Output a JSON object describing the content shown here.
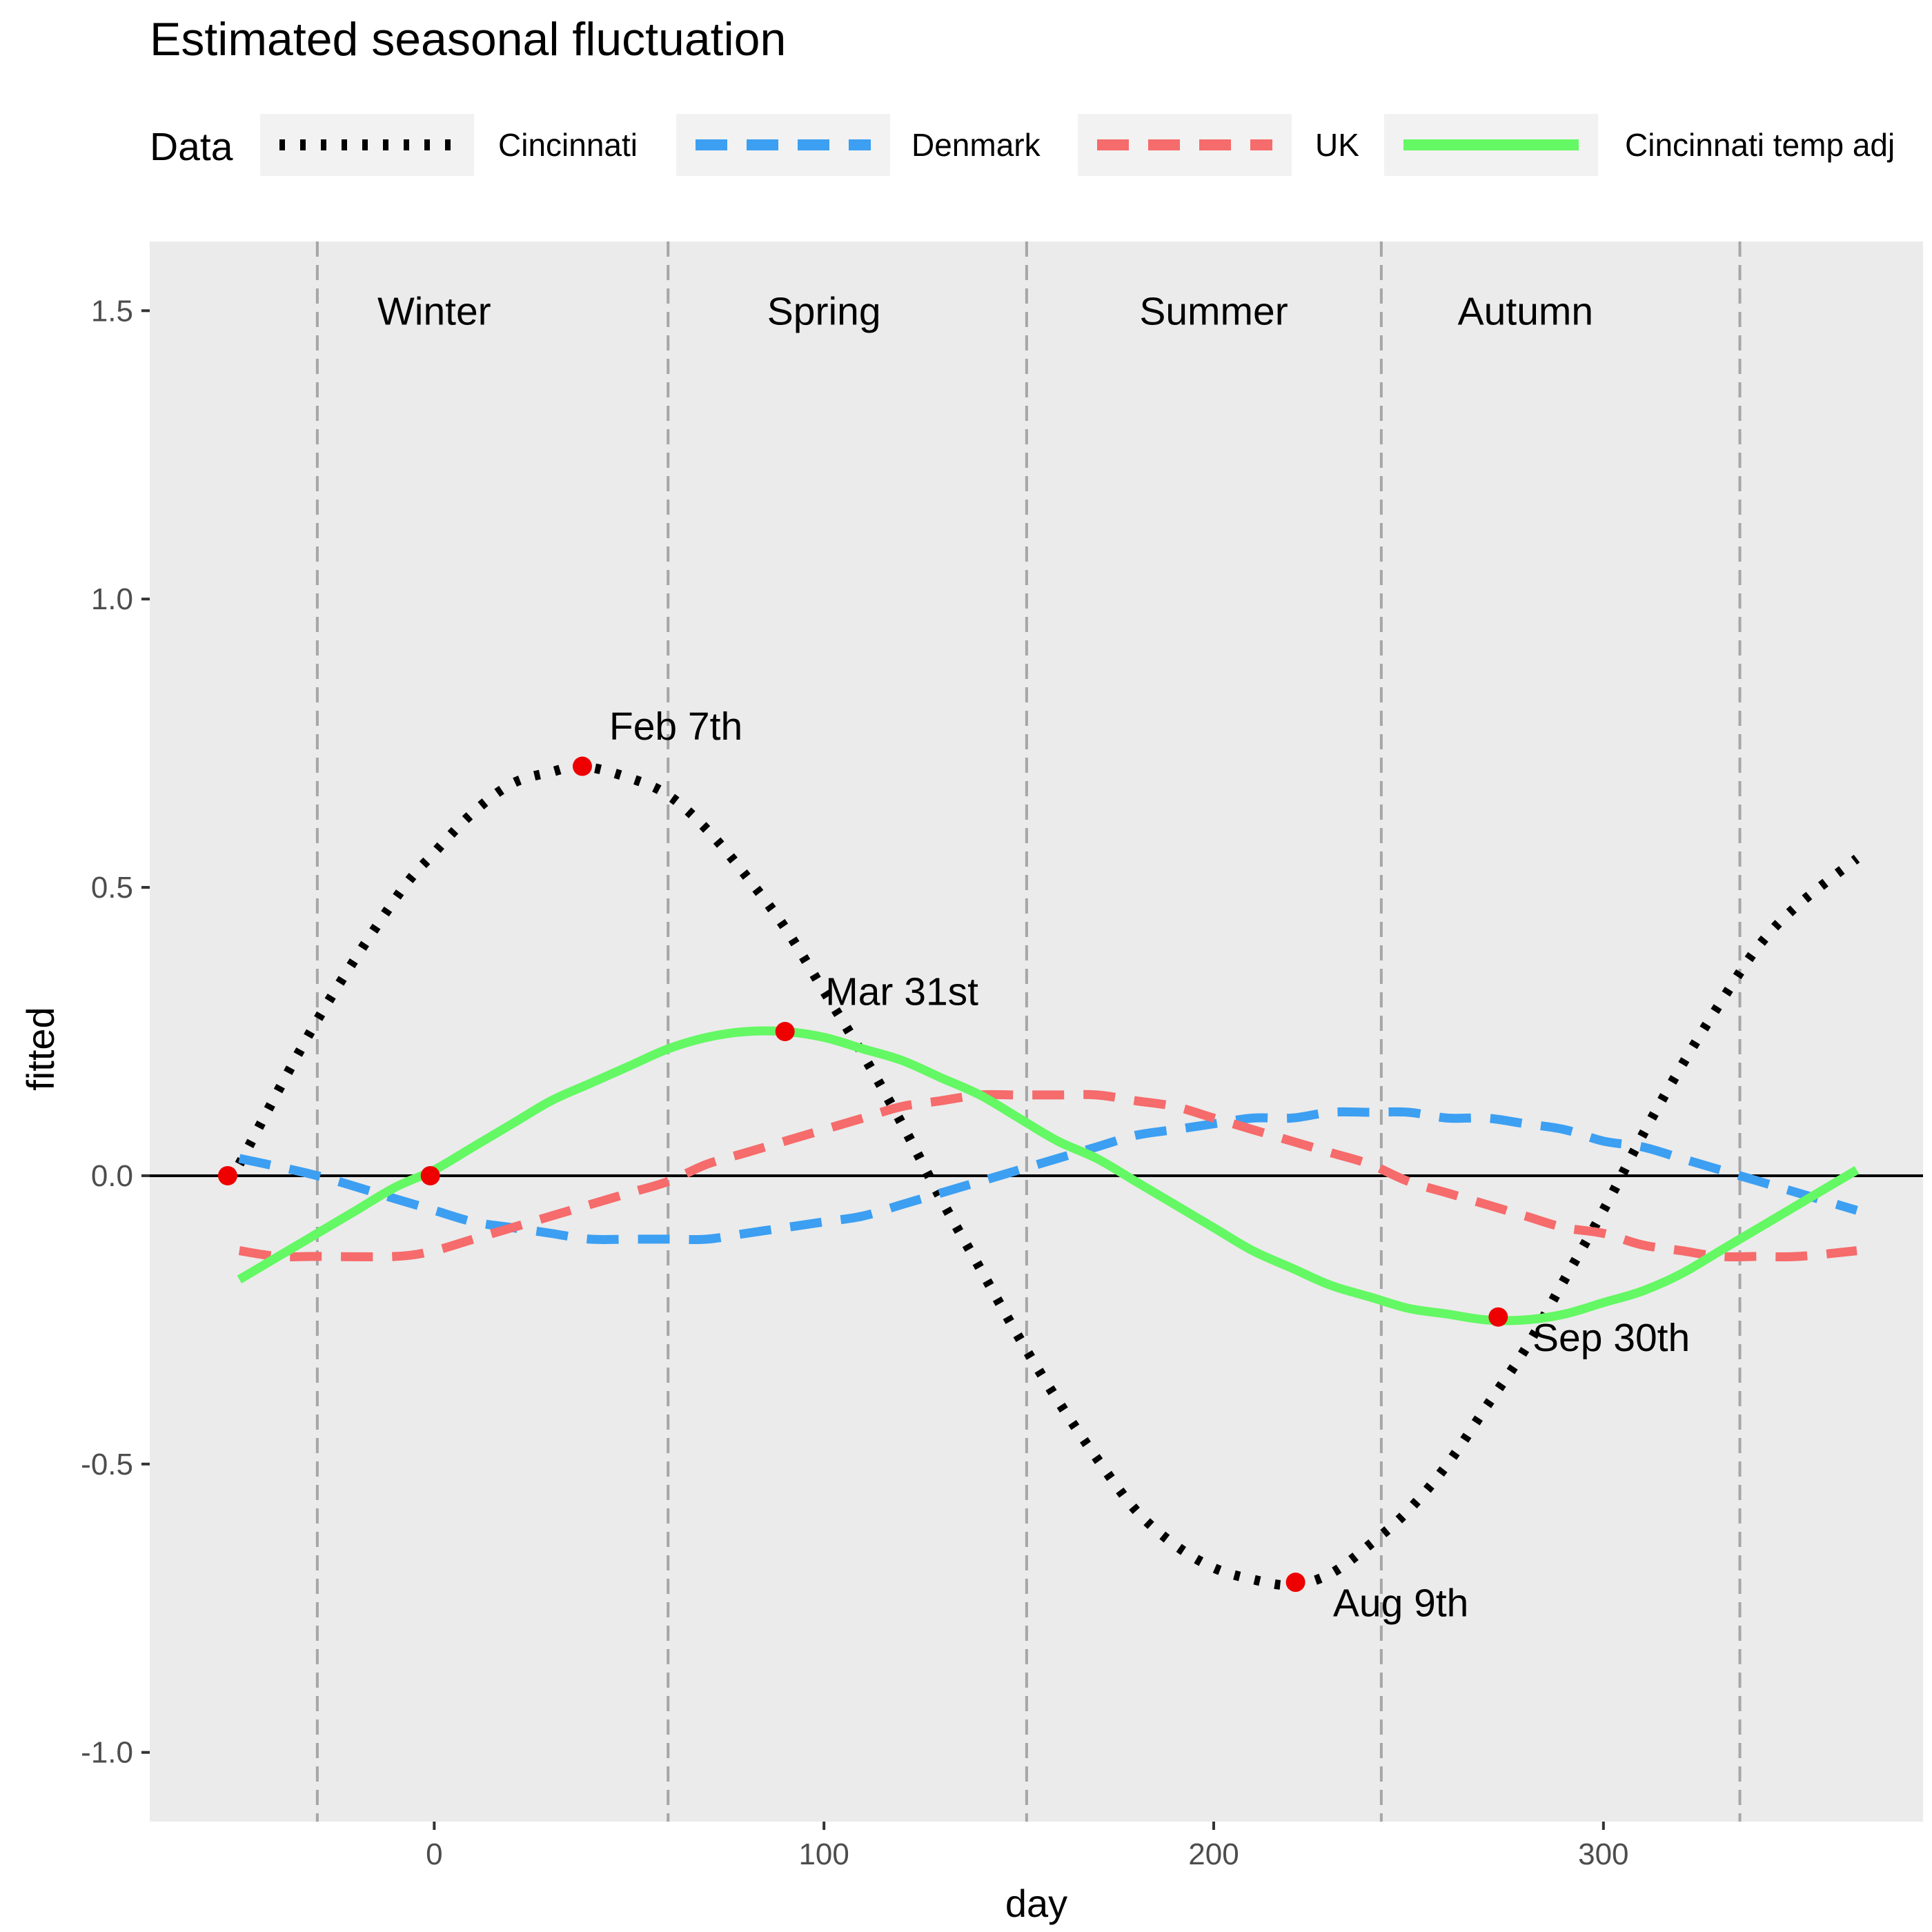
{
  "chart_data": {
    "type": "line",
    "title": "Estimated seasonal fluctuation",
    "xlabel": "day",
    "ylabel": "fitted",
    "xlim": [
      -73,
      382
    ],
    "ylim": [
      -1.12,
      1.62
    ],
    "xticks": [
      0,
      100,
      200,
      300
    ],
    "yticks": [
      -1.0,
      -0.5,
      0.0,
      0.5,
      1.0,
      1.5
    ],
    "xtick_labels": [
      "0",
      "100",
      "200",
      "300"
    ],
    "ytick_labels": [
      "-1.0",
      "-0.5",
      "0.0",
      "0.5",
      "1.0",
      "1.5"
    ],
    "legend": {
      "title": "Data",
      "placement": "top",
      "entries": [
        "Cincinnati",
        "Denmark",
        "UK",
        "Cincinnati temp adj"
      ]
    },
    "hline_y": 0,
    "season_boundaries": [
      -30,
      60,
      152,
      243,
      335
    ],
    "seasons": [
      {
        "label": "Winter",
        "x": 0,
        "y": 1.5
      },
      {
        "label": "Spring",
        "x": 100,
        "y": 1.5
      },
      {
        "label": "Summer",
        "x": 200,
        "y": 1.5
      },
      {
        "label": "Autumn",
        "x": 280,
        "y": 1.5
      }
    ],
    "series": [
      {
        "name": "Cincinnati",
        "color": "#000000",
        "style": "dotted",
        "x": [
          -50,
          -30,
          -10,
          0,
          10,
          20,
          30,
          38,
          50,
          60,
          70,
          80,
          90,
          100,
          110,
          120,
          130,
          140,
          150,
          160,
          170,
          180,
          190,
          200,
          210,
          220,
          230,
          240,
          250,
          260,
          270,
          280,
          290,
          300,
          310,
          320,
          330,
          340,
          350,
          365
        ],
        "values": [
          0.02,
          0.27,
          0.48,
          0.56,
          0.63,
          0.68,
          0.7,
          0.71,
          0.69,
          0.66,
          0.6,
          0.52,
          0.43,
          0.32,
          0.21,
          0.09,
          -0.04,
          -0.16,
          -0.28,
          -0.39,
          -0.49,
          -0.58,
          -0.64,
          -0.68,
          -0.7,
          -0.71,
          -0.69,
          -0.64,
          -0.58,
          -0.5,
          -0.4,
          -0.3,
          -0.18,
          -0.06,
          0.07,
          0.19,
          0.3,
          0.4,
          0.47,
          0.55
        ]
      },
      {
        "name": "Denmark",
        "color": "#3c9ff2",
        "style": "dashed",
        "x": [
          -50,
          -30,
          -10,
          0,
          10,
          20,
          30,
          40,
          50,
          60,
          70,
          80,
          90,
          100,
          110,
          120,
          130,
          140,
          150,
          160,
          170,
          180,
          190,
          200,
          210,
          220,
          230,
          240,
          250,
          260,
          270,
          280,
          290,
          300,
          310,
          320,
          330,
          340,
          350,
          365
        ],
        "values": [
          0.03,
          0.0,
          -0.04,
          -0.06,
          -0.08,
          -0.09,
          -0.1,
          -0.11,
          -0.11,
          -0.11,
          -0.11,
          -0.1,
          -0.09,
          -0.08,
          -0.07,
          -0.05,
          -0.03,
          -0.01,
          0.01,
          0.03,
          0.05,
          0.07,
          0.08,
          0.09,
          0.1,
          0.1,
          0.11,
          0.11,
          0.11,
          0.1,
          0.1,
          0.09,
          0.08,
          0.06,
          0.05,
          0.03,
          0.01,
          -0.01,
          -0.03,
          -0.06
        ]
      },
      {
        "name": "UK",
        "color": "#f66b6b",
        "style": "dashed",
        "x": [
          -50,
          -40,
          -30,
          -10,
          0,
          10,
          20,
          30,
          40,
          50,
          60,
          70,
          80,
          90,
          100,
          110,
          120,
          130,
          140,
          150,
          160,
          170,
          180,
          190,
          200,
          210,
          220,
          230,
          240,
          250,
          260,
          270,
          280,
          290,
          300,
          310,
          320,
          330,
          340,
          350,
          365
        ],
        "values": [
          -0.13,
          -0.14,
          -0.14,
          -0.14,
          -0.13,
          -0.11,
          -0.09,
          -0.07,
          -0.05,
          -0.03,
          -0.01,
          0.02,
          0.04,
          0.06,
          0.08,
          0.1,
          0.12,
          0.13,
          0.14,
          0.14,
          0.14,
          0.14,
          0.13,
          0.12,
          0.1,
          0.08,
          0.06,
          0.04,
          0.02,
          -0.01,
          -0.03,
          -0.05,
          -0.07,
          -0.09,
          -0.1,
          -0.12,
          -0.13,
          -0.14,
          -0.14,
          -0.14,
          -0.13
        ]
      },
      {
        "name": "Cincinnati temp adj",
        "color": "#64f864",
        "style": "solid",
        "x": [
          -50,
          -40,
          -30,
          -20,
          -10,
          0,
          10,
          20,
          30,
          40,
          50,
          60,
          70,
          80,
          90,
          100,
          110,
          120,
          130,
          140,
          150,
          160,
          170,
          180,
          190,
          200,
          210,
          220,
          230,
          240,
          250,
          260,
          270,
          280,
          290,
          300,
          310,
          320,
          330,
          340,
          350,
          365
        ],
        "values": [
          -0.18,
          -0.14,
          -0.1,
          -0.06,
          -0.02,
          0.01,
          0.05,
          0.09,
          0.13,
          0.16,
          0.19,
          0.22,
          0.24,
          0.25,
          0.25,
          0.24,
          0.22,
          0.2,
          0.17,
          0.14,
          0.1,
          0.06,
          0.03,
          -0.01,
          -0.05,
          -0.09,
          -0.13,
          -0.16,
          -0.19,
          -0.21,
          -0.23,
          -0.24,
          -0.25,
          -0.25,
          -0.24,
          -0.22,
          -0.2,
          -0.17,
          -0.13,
          -0.09,
          -0.05,
          0.01
        ]
      }
    ],
    "points": [
      {
        "x": -53,
        "y": 0.0
      },
      {
        "x": -1,
        "y": 0.0
      },
      {
        "x": 38,
        "y": 0.71
      },
      {
        "x": 90,
        "y": 0.25
      },
      {
        "x": 221,
        "y": -0.705
      },
      {
        "x": 273,
        "y": -0.245
      }
    ],
    "annotations": [
      {
        "text": "Feb 7th",
        "x": 62,
        "y": 0.78
      },
      {
        "text": "Mar 31st",
        "x": 120,
        "y": 0.32
      },
      {
        "text": "Aug 9th",
        "x": 248,
        "y": -0.74
      },
      {
        "text": "Sep 30th",
        "x": 302,
        "y": -0.28
      }
    ]
  }
}
